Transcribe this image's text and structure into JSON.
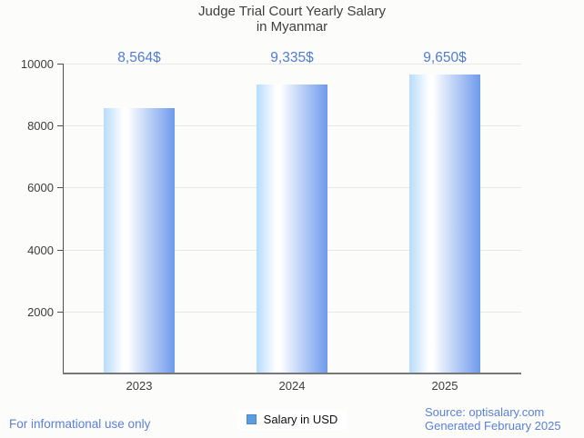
{
  "page": {
    "background_color": "#fcfcfa"
  },
  "chart_data": {
    "type": "bar",
    "title": "Judge Trial Court Yearly Salary\nin Myanmar",
    "categories": [
      "2023",
      "2024",
      "2025"
    ],
    "series": [
      {
        "name": "Salary in USD",
        "values": [
          8564,
          9335,
          9650
        ]
      }
    ],
    "value_labels": [
      "8,564$",
      "9,335$",
      "9,650$"
    ],
    "xlabel": "",
    "ylabel": "",
    "ylim": [
      0,
      10000
    ],
    "yticks": [
      2000,
      4000,
      6000,
      8000,
      10000
    ],
    "grid": true,
    "legend_position": "bottom-center",
    "colors": {
      "bar_gradient_left": "#b7dcfd",
      "bar_gradient_middle": "#ffffff",
      "bar_gradient_right": "#6d9aec",
      "value_label": "#4f7cd7",
      "title": "#3f3f3f",
      "axis_label": "#3d3d3d",
      "gridline": "#e8e8e5",
      "legend_swatch_fill": "#5c9ce0",
      "legend_swatch_border": "#4a86c8"
    }
  },
  "legend": {
    "label": "Salary in USD"
  },
  "footer": {
    "disclaimer": "For informational use only",
    "source": "Source: optisalary.com",
    "generated": "Generated February 2025",
    "text_color": "#5b80d9"
  }
}
